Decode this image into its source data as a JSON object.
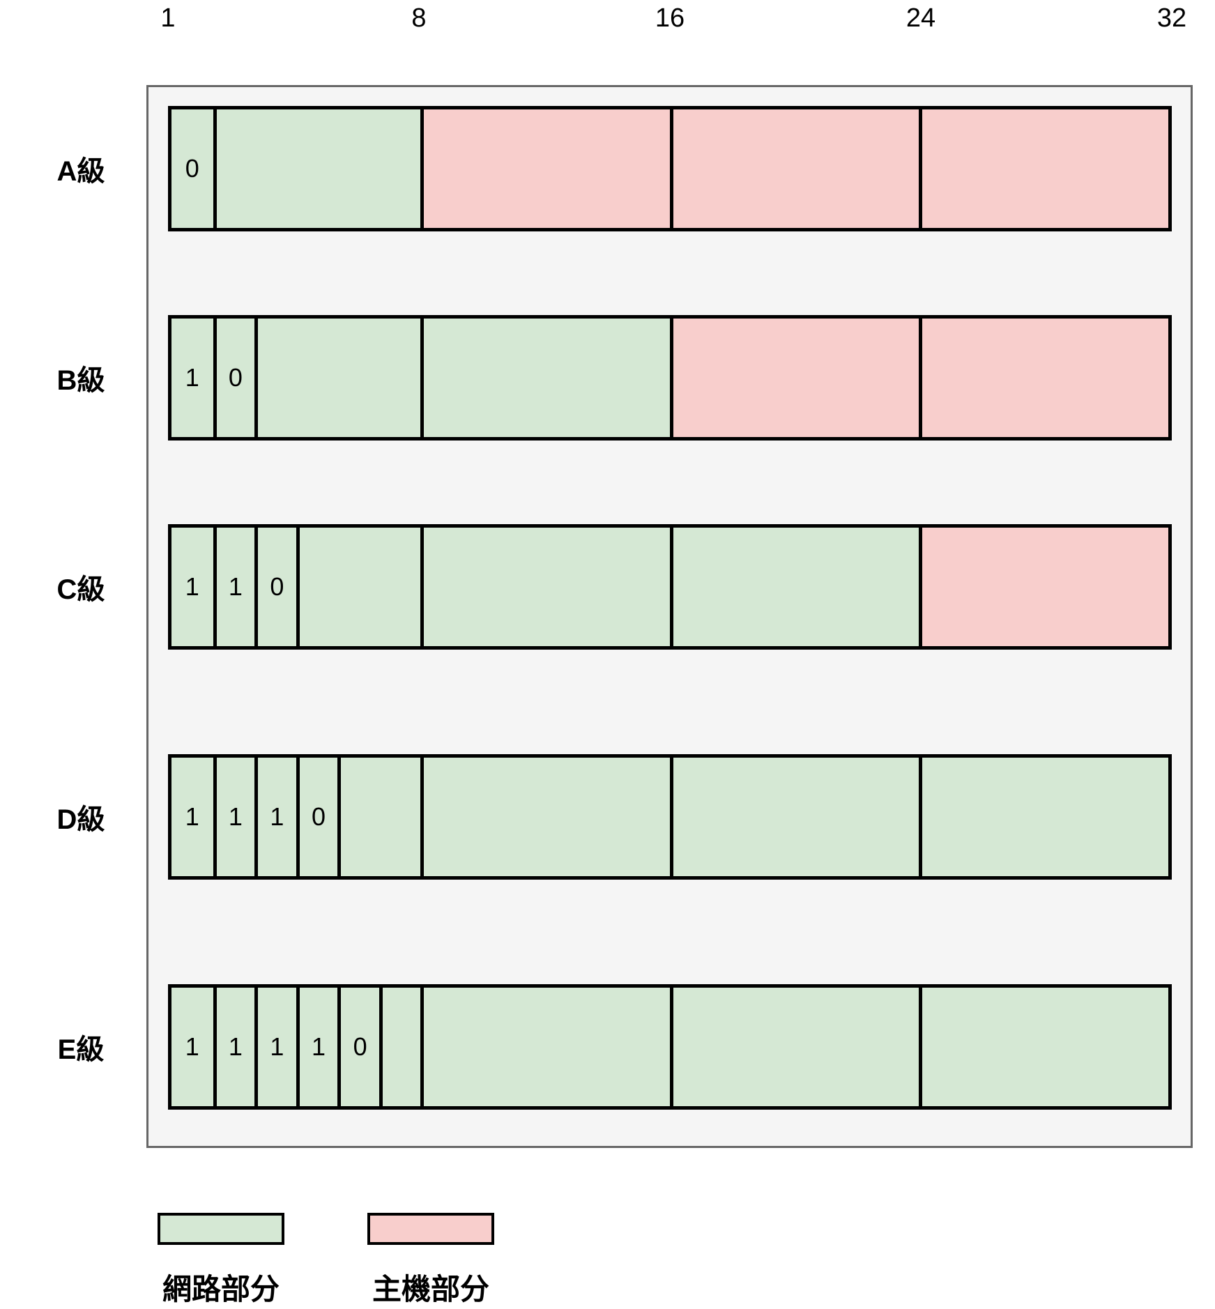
{
  "diagram": {
    "axis_labels": [
      "1",
      "8",
      "16",
      "24",
      "32"
    ],
    "rows": [
      {
        "label": "A級",
        "prefix_bits": [
          "0"
        ],
        "octets": [
          "network",
          "host",
          "host",
          "host"
        ]
      },
      {
        "label": "B級",
        "prefix_bits": [
          "1",
          "0"
        ],
        "octets": [
          "network",
          "network",
          "host",
          "host"
        ]
      },
      {
        "label": "C級",
        "prefix_bits": [
          "1",
          "1",
          "0"
        ],
        "octets": [
          "network",
          "network",
          "network",
          "host"
        ]
      },
      {
        "label": "D級",
        "prefix_bits": [
          "1",
          "1",
          "1",
          "0"
        ],
        "octets": [
          "network",
          "network",
          "network",
          "network"
        ]
      },
      {
        "label": "E級",
        "prefix_bits": [
          "1",
          "1",
          "1",
          "1",
          "0",
          ""
        ],
        "octets": [
          "network",
          "network",
          "network",
          "network"
        ]
      }
    ],
    "legend": [
      {
        "label": "網路部分",
        "part": "network"
      },
      {
        "label": "主機部分",
        "part": "host"
      }
    ],
    "colors": {
      "network": "#d5e8d4",
      "host": "#f8cecc",
      "stroke": "#000000",
      "container_border": "#666666",
      "container_bg": "#f5f5f5",
      "page_bg": "#ffffff",
      "text": "#000000"
    }
  }
}
